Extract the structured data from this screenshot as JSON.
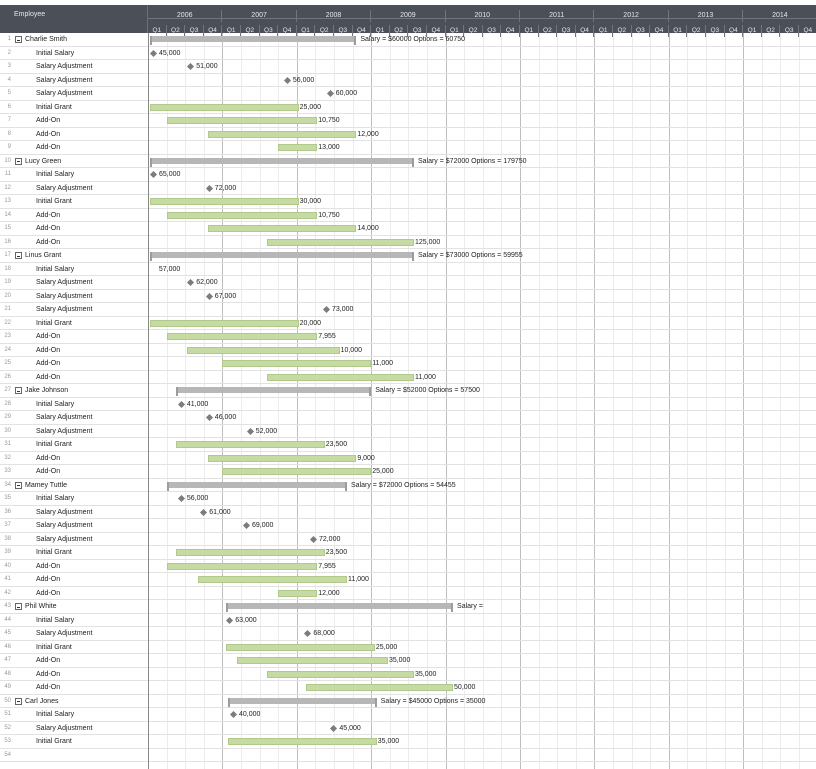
{
  "header": {
    "employee_label": "Employee"
  },
  "years": [
    "2006",
    "2007",
    "2008",
    "2009",
    "2010",
    "2011",
    "2012",
    "2013",
    "2014"
  ],
  "quarters": [
    "Q1",
    "Q2",
    "Q3",
    "Q4"
  ],
  "colors": {
    "header_bg": "#4b4f58",
    "task_bar": "#c6dba3",
    "summary_bar": "#b7b7b7",
    "milestone": "#7c7c7c"
  },
  "rows": [
    {
      "n": "1",
      "label": "Charlie Smith",
      "type": "group",
      "start": 0.1,
      "end": 11.2,
      "text": "Salary = $60000 Options = 60750"
    },
    {
      "n": "2",
      "label": "Initial Salary",
      "type": "milestone",
      "start": 0,
      "text": "45,000"
    },
    {
      "n": "3",
      "label": "Salary Adjustment",
      "type": "milestone",
      "start": 2,
      "text": "51,000"
    },
    {
      "n": "4",
      "label": "Salary Adjustment",
      "type": "milestone",
      "start": 7.2,
      "text": "56,000"
    },
    {
      "n": "5",
      "label": "Salary Adjustment",
      "type": "milestone",
      "start": 9.5,
      "text": "60,000"
    },
    {
      "n": "6",
      "label": "Initial Grant",
      "type": "task",
      "start": 0.1,
      "end": 8.1,
      "text": "25,000"
    },
    {
      "n": "7",
      "label": "Add-On",
      "type": "task",
      "start": 1,
      "end": 9.1,
      "text": "10,750"
    },
    {
      "n": "8",
      "label": "Add-On",
      "type": "task",
      "start": 3.2,
      "end": 11.2,
      "text": "12,000"
    },
    {
      "n": "9",
      "label": "Add-On",
      "type": "task",
      "start": 7,
      "end": 9.1,
      "text": "13,000"
    },
    {
      "n": "10",
      "label": "Lucy Green",
      "type": "group",
      "start": 0.1,
      "end": 14.3,
      "text": "Salary = $72000 Options = 179750"
    },
    {
      "n": "11",
      "label": "Initial Salary",
      "type": "milestone",
      "start": 0,
      "text": "65,000"
    },
    {
      "n": "12",
      "label": "Salary Adjustment",
      "type": "milestone",
      "start": 3,
      "text": "72,000"
    },
    {
      "n": "13",
      "label": "Initial Grant",
      "type": "task",
      "start": 0.1,
      "end": 8.1,
      "text": "30,000"
    },
    {
      "n": "14",
      "label": "Add-On",
      "type": "task",
      "start": 1,
      "end": 9.1,
      "text": "10,750"
    },
    {
      "n": "15",
      "label": "Add-On",
      "type": "task",
      "start": 3.2,
      "end": 11.2,
      "text": "14,000"
    },
    {
      "n": "16",
      "label": "Add-On",
      "type": "task",
      "start": 6.4,
      "end": 14.3,
      "text": "125,000"
    },
    {
      "n": "17",
      "label": "Linus Grant",
      "type": "group",
      "start": 0.1,
      "end": 14.3,
      "text": "Salary = $73000 Options = 59955"
    },
    {
      "n": "18",
      "label": "Initial Salary",
      "type": "label",
      "start": 0.1,
      "text": "57,000"
    },
    {
      "n": "19",
      "label": "Salary Adjustment",
      "type": "milestone",
      "start": 2,
      "text": "62,000"
    },
    {
      "n": "20",
      "label": "Salary Adjustment",
      "type": "milestone",
      "start": 3,
      "text": "67,000"
    },
    {
      "n": "21",
      "label": "Salary Adjustment",
      "type": "milestone",
      "start": 9.3,
      "text": "73,000"
    },
    {
      "n": "22",
      "label": "Initial Grant",
      "type": "task",
      "start": 0.1,
      "end": 8.1,
      "text": "20,000"
    },
    {
      "n": "23",
      "label": "Add-On",
      "type": "task",
      "start": 1,
      "end": 9.1,
      "text": "7,955"
    },
    {
      "n": "24",
      "label": "Add-On",
      "type": "task",
      "start": 2.1,
      "end": 10.3,
      "text": "10,000"
    },
    {
      "n": "25",
      "label": "Add-On",
      "type": "task",
      "start": 4,
      "end": 12,
      "text": "11,000"
    },
    {
      "n": "26",
      "label": "Add-On",
      "type": "task",
      "start": 6.4,
      "end": 14.3,
      "text": "11,000"
    },
    {
      "n": "27",
      "label": "Jake Johnson",
      "type": "group",
      "start": 1.5,
      "end": 12,
      "text": "Salary = $52000 Options = 57500"
    },
    {
      "n": "28",
      "label": "Initial Salary",
      "type": "milestone",
      "start": 1.5,
      "text": "41,000"
    },
    {
      "n": "29",
      "label": "Salary Adjustment",
      "type": "milestone",
      "start": 3,
      "text": "46,000"
    },
    {
      "n": "30",
      "label": "Salary Adjustment",
      "type": "milestone",
      "start": 5.2,
      "text": "52,000"
    },
    {
      "n": "31",
      "label": "Initial Grant",
      "type": "task",
      "start": 1.5,
      "end": 9.5,
      "text": "23,500"
    },
    {
      "n": "32",
      "label": "Add-On",
      "type": "task",
      "start": 3.2,
      "end": 11.2,
      "text": "9,000"
    },
    {
      "n": "33",
      "label": "Add-On",
      "type": "task",
      "start": 4,
      "end": 12,
      "text": "25,000"
    },
    {
      "n": "34",
      "label": "Mamey Tuttle",
      "type": "group",
      "start": 1,
      "end": 10.7,
      "text": "Salary = $72000 Options = 54455"
    },
    {
      "n": "35",
      "label": "Initial Salary",
      "type": "milestone",
      "start": 1.5,
      "text": "56,000"
    },
    {
      "n": "36",
      "label": "Salary Adjustment",
      "type": "milestone",
      "start": 2.7,
      "text": "61,000"
    },
    {
      "n": "37",
      "label": "Salary Adjustment",
      "type": "milestone",
      "start": 5,
      "text": "69,000"
    },
    {
      "n": "38",
      "label": "Salary Adjustment",
      "type": "milestone",
      "start": 8.6,
      "text": "72,000"
    },
    {
      "n": "39",
      "label": "Initial Grant",
      "type": "task",
      "start": 1.5,
      "end": 9.5,
      "text": "23,500"
    },
    {
      "n": "40",
      "label": "Add-On",
      "type": "task",
      "start": 1,
      "end": 9.1,
      "text": "7,955"
    },
    {
      "n": "41",
      "label": "Add-On",
      "type": "task",
      "start": 2.7,
      "end": 10.7,
      "text": "11,000"
    },
    {
      "n": "42",
      "label": "Add-On",
      "type": "task",
      "start": 7,
      "end": 9.1,
      "text": "12,000"
    },
    {
      "n": "43",
      "label": "Phil White",
      "type": "group",
      "start": 4.2,
      "end": 16.4,
      "text": "Salary ="
    },
    {
      "n": "44",
      "label": "Initial Salary",
      "type": "milestone",
      "start": 4.1,
      "text": "63,000"
    },
    {
      "n": "45",
      "label": "Salary Adjustment",
      "type": "milestone",
      "start": 8.3,
      "text": "68,000"
    },
    {
      "n": "46",
      "label": "Initial Grant",
      "type": "task",
      "start": 4.2,
      "end": 12.2,
      "text": "25,000"
    },
    {
      "n": "47",
      "label": "Add-On",
      "type": "task",
      "start": 4.8,
      "end": 12.9,
      "text": "35,000"
    },
    {
      "n": "48",
      "label": "Add-On",
      "type": "task",
      "start": 6.4,
      "end": 14.3,
      "text": "35,000"
    },
    {
      "n": "49",
      "label": "Add-On",
      "type": "task",
      "start": 8.5,
      "end": 16.4,
      "text": "50,000"
    },
    {
      "n": "50",
      "label": "Carl Jones",
      "type": "group",
      "start": 4.3,
      "end": 12.3,
      "text": "Salary = $45000 Options = 35000"
    },
    {
      "n": "51",
      "label": "Initial Salary",
      "type": "milestone",
      "start": 4.3,
      "text": "40,000"
    },
    {
      "n": "52",
      "label": "Salary Adjustment",
      "type": "milestone",
      "start": 9.7,
      "text": "45,000"
    },
    {
      "n": "53",
      "label": "Initial Grant",
      "type": "task",
      "start": 4.3,
      "end": 12.3,
      "text": "35,000"
    },
    {
      "n": "54",
      "label": "",
      "type": "empty"
    }
  ]
}
